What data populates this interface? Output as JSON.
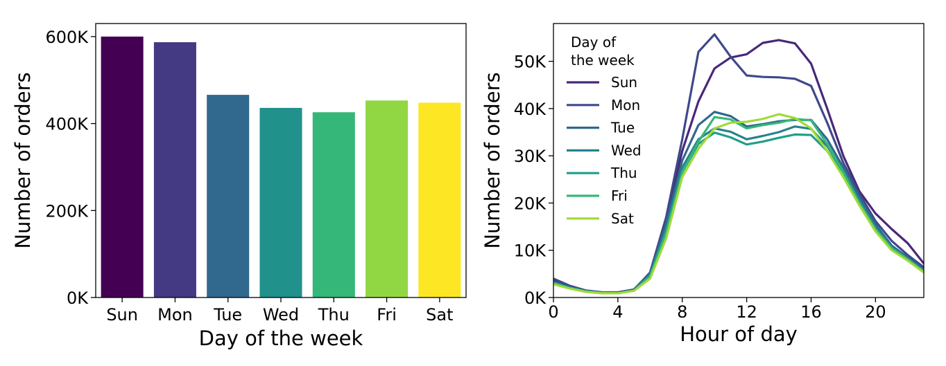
{
  "chart_data": [
    {
      "type": "bar",
      "categories": [
        "Sun",
        "Mon",
        "Tue",
        "Wed",
        "Thu",
        "Fri",
        "Sat"
      ],
      "values": [
        600000,
        587000,
        466000,
        436000,
        426000,
        453000,
        448000
      ],
      "colors": [
        "#440154",
        "#443983",
        "#31688e",
        "#21918c",
        "#35b779",
        "#90d743",
        "#fde725"
      ],
      "xlabel": "Day of the week",
      "ylabel": "Number of orders",
      "ylim": [
        0,
        630000
      ],
      "yticks": [
        0,
        200000,
        400000,
        600000
      ],
      "ytick_labels": [
        "0K",
        "200K",
        "400K",
        "600K"
      ],
      "grid": false
    },
    {
      "type": "line",
      "x": [
        0,
        1,
        2,
        3,
        4,
        5,
        6,
        7,
        8,
        9,
        10,
        11,
        12,
        13,
        14,
        15,
        16,
        17,
        18,
        19,
        20,
        21,
        22,
        23
      ],
      "xlabel": "Hour of day",
      "ylabel": "Number of orders",
      "xlim": [
        0,
        23
      ],
      "ylim": [
        0,
        58000
      ],
      "xticks": [
        0,
        4,
        8,
        12,
        16,
        20
      ],
      "xtick_labels": [
        "0",
        "4",
        "8",
        "12",
        "16",
        "20"
      ],
      "yticks": [
        0,
        10000,
        20000,
        30000,
        40000,
        50000
      ],
      "ytick_labels": [
        "0K",
        "10K",
        "20K",
        "30K",
        "40K",
        "50K"
      ],
      "legend_title": "Day of\nthe week",
      "legend_title_lines": [
        "Day of",
        "the week"
      ],
      "legend_position": "top-left",
      "grid": false,
      "series": [
        {
          "name": "Sun",
          "color": "#482878",
          "values": [
            3800,
            2400,
            1500,
            1100,
            1100,
            1700,
            5200,
            16500,
            31000,
            41500,
            48500,
            50800,
            51500,
            53900,
            54500,
            53800,
            49500,
            40000,
            30000,
            22500,
            17800,
            14500,
            11500,
            7200
          ]
        },
        {
          "name": "Mon",
          "color": "#3e4989",
          "values": [
            4000,
            2500,
            1500,
            1100,
            1000,
            1600,
            5300,
            17000,
            33500,
            52000,
            55700,
            51000,
            47000,
            46700,
            46600,
            46300,
            44800,
            37000,
            28500,
            22000,
            16200,
            12000,
            9000,
            6400
          ]
        },
        {
          "name": "Tue",
          "color": "#31688e",
          "values": [
            3300,
            2200,
            1400,
            1000,
            1000,
            1600,
            5000,
            15500,
            29000,
            36500,
            39300,
            38400,
            36200,
            36700,
            37300,
            37600,
            37600,
            33500,
            27500,
            21200,
            15500,
            11000,
            8500,
            5800
          ]
        },
        {
          "name": "Wed",
          "color": "#26828e",
          "values": [
            3200,
            2100,
            1300,
            1000,
            1000,
            1500,
            4800,
            14500,
            27500,
            33500,
            35800,
            35100,
            33500,
            34200,
            35000,
            36200,
            35700,
            32000,
            27000,
            20500,
            14800,
            10500,
            8200,
            5600
          ]
        },
        {
          "name": "Thu",
          "color": "#1f9e89",
          "values": [
            3100,
            2000,
            1300,
            1000,
            1000,
            1500,
            4600,
            14000,
            26500,
            32500,
            34900,
            33900,
            32400,
            33000,
            33800,
            34500,
            34400,
            31000,
            26500,
            20000,
            14500,
            10200,
            8000,
            5500
          ]
        },
        {
          "name": "Fri",
          "color": "#35b779",
          "values": [
            3000,
            2000,
            1300,
            1000,
            900,
            1500,
            4400,
            13500,
            26500,
            33000,
            38200,
            37700,
            35800,
            36500,
            37000,
            37800,
            37500,
            32500,
            26500,
            20000,
            14500,
            10500,
            8100,
            5500
          ]
        },
        {
          "name": "Sat",
          "color": "#a0da39",
          "values": [
            2800,
            1900,
            1200,
            900,
            900,
            1400,
            4000,
            12500,
            25500,
            31500,
            35800,
            37000,
            37200,
            37800,
            38800,
            38000,
            35800,
            31000,
            25500,
            19500,
            14000,
            10000,
            7800,
            5300
          ]
        }
      ]
    }
  ]
}
